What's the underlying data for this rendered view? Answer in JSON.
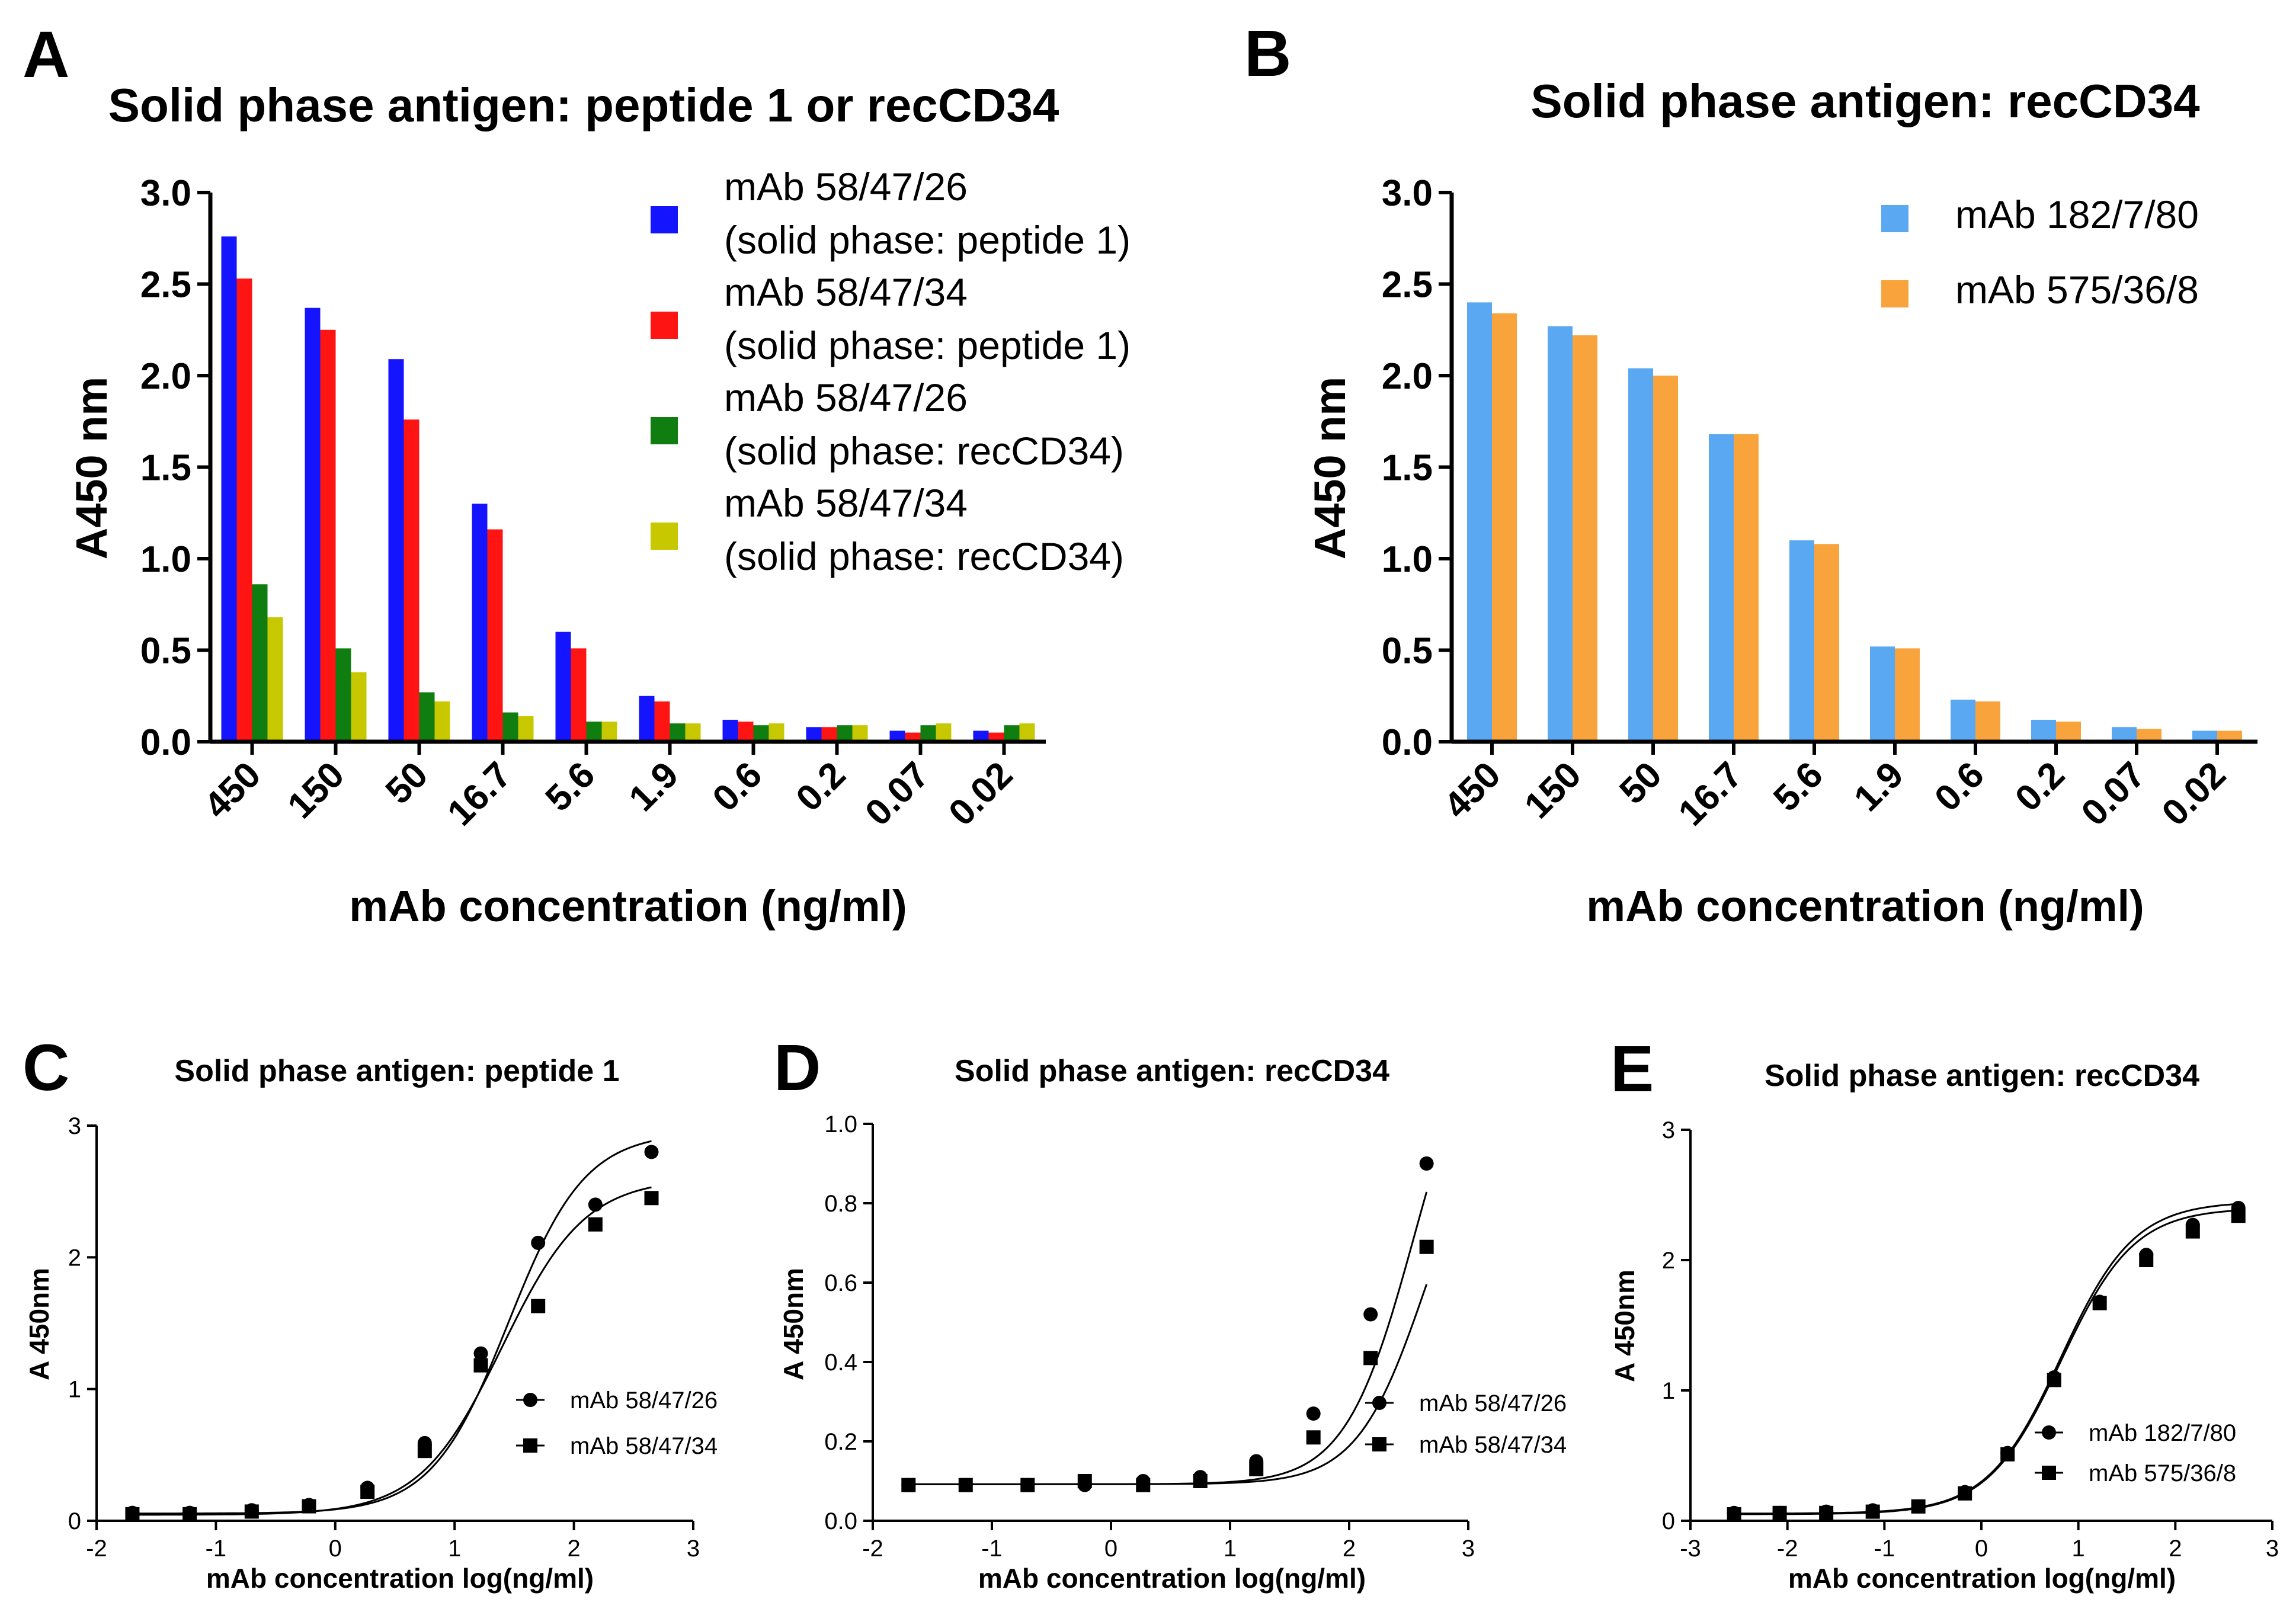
{
  "chart_data": [
    {
      "panel": "A",
      "type": "bar",
      "title": "Solid phase antigen: peptide 1 or recCD34",
      "xlabel": "mAb concentration (ng/ml)",
      "ylabel": "A450 nm",
      "ylim": [
        0,
        3.0
      ],
      "yticks": [
        "0.0",
        "0.5",
        "1.0",
        "1.5",
        "2.0",
        "2.5",
        "3.0"
      ],
      "categories": [
        "450",
        "150",
        "50",
        "16.7",
        "5.6",
        "1.9",
        "0.6",
        "0.2",
        "0.07",
        "0.02"
      ],
      "legend_position": "top-right",
      "series": [
        {
          "name_lines": [
            "mAb 58/47/26",
            "(solid phase: peptide 1)"
          ],
          "color": "#1414ff",
          "values": [
            2.76,
            2.37,
            2.09,
            1.3,
            0.6,
            0.25,
            0.12,
            0.08,
            0.06,
            0.06
          ]
        },
        {
          "name_lines": [
            "mAb 58/47/34",
            "(solid phase: peptide 1)"
          ],
          "color": "#ff1414",
          "values": [
            2.53,
            2.25,
            1.76,
            1.16,
            0.51,
            0.22,
            0.11,
            0.08,
            0.05,
            0.05
          ]
        },
        {
          "name_lines": [
            "mAb 58/47/26",
            "(solid phase: recCD34)"
          ],
          "color": "#0f7d0f",
          "values": [
            0.86,
            0.51,
            0.27,
            0.16,
            0.11,
            0.1,
            0.09,
            0.09,
            0.09,
            0.09
          ]
        },
        {
          "name_lines": [
            "mAb 58/47/34",
            "(solid phase: recCD34)"
          ],
          "color": "#c8c800",
          "values": [
            0.68,
            0.38,
            0.22,
            0.14,
            0.11,
            0.1,
            0.1,
            0.09,
            0.1,
            0.1
          ]
        }
      ]
    },
    {
      "panel": "B",
      "type": "bar",
      "title": "Solid phase antigen: recCD34",
      "xlabel": "mAb concentration (ng/ml)",
      "ylabel": "A450 nm",
      "ylim": [
        0,
        3.0
      ],
      "yticks": [
        "0.0",
        "0.5",
        "1.0",
        "1.5",
        "2.0",
        "2.5",
        "3.0"
      ],
      "categories": [
        "450",
        "150",
        "50",
        "16.7",
        "5.6",
        "1.9",
        "0.6",
        "0.2",
        "0.07",
        "0.02"
      ],
      "legend_position": "top-right",
      "series": [
        {
          "name_lines": [
            "mAb 182/7/80"
          ],
          "color": "#5aa8f2",
          "values": [
            2.4,
            2.27,
            2.04,
            1.68,
            1.1,
            0.52,
            0.23,
            0.12,
            0.08,
            0.06
          ]
        },
        {
          "name_lines": [
            "mAb 575/36/8"
          ],
          "color": "#f9a33c",
          "values": [
            2.34,
            2.22,
            2.0,
            1.68,
            1.08,
            0.51,
            0.22,
            0.11,
            0.07,
            0.06
          ]
        }
      ]
    },
    {
      "panel": "C",
      "type": "scatter",
      "title": "Solid phase antigen: peptide 1",
      "xlabel": "mAb concentration log(ng/ml)",
      "ylabel": "A 450nm",
      "xlim": [
        -2,
        3
      ],
      "ylim": [
        0,
        3
      ],
      "xticks": [
        "-2",
        "-1",
        "0",
        "1",
        "2",
        "3"
      ],
      "yticks": [
        "0",
        "1",
        "2",
        "3"
      ],
      "legend_position": "center-right",
      "series": [
        {
          "name": "mAb 58/47/26",
          "marker": "circle",
          "x": [
            -1.7,
            -1.22,
            -0.7,
            -0.22,
            0.27,
            0.75,
            1.22,
            1.7,
            2.18,
            2.65
          ],
          "y": [
            0.06,
            0.06,
            0.08,
            0.12,
            0.25,
            0.59,
            1.27,
            2.11,
            2.4,
            2.8
          ],
          "fit": {
            "bottom": 0.055,
            "top": 2.95,
            "logec50": 1.45,
            "hill": 1.35
          }
        },
        {
          "name": "mAb 58/47/34",
          "marker": "square",
          "x": [
            -1.7,
            -1.22,
            -0.7,
            -0.22,
            0.27,
            0.75,
            1.22,
            1.7,
            2.18,
            2.65
          ],
          "y": [
            0.05,
            0.05,
            0.07,
            0.11,
            0.22,
            0.53,
            1.18,
            1.63,
            2.25,
            2.45
          ],
          "fit": {
            "bottom": 0.045,
            "top": 2.6,
            "logec50": 1.4,
            "hill": 1.25
          }
        }
      ]
    },
    {
      "panel": "D",
      "type": "scatter",
      "title": "Solid phase antigen: recCD34",
      "xlabel": "mAb concentration log(ng/ml)",
      "ylabel": "A 450nm",
      "xlim": [
        -2,
        3
      ],
      "ylim": [
        0,
        1.0
      ],
      "xticks": [
        "-2",
        "-1",
        "0",
        "1",
        "2",
        "3"
      ],
      "yticks": [
        "0.0",
        "0.2",
        "0.4",
        "0.6",
        "0.8",
        "1.0"
      ],
      "legend_position": "center-right",
      "series": [
        {
          "name": "mAb 58/47/26",
          "marker": "circle",
          "x": [
            -1.7,
            -1.22,
            -0.7,
            -0.22,
            0.27,
            0.75,
            1.22,
            1.7,
            2.18,
            2.65
          ],
          "y": [
            0.09,
            0.09,
            0.09,
            0.09,
            0.1,
            0.11,
            0.15,
            0.27,
            0.52,
            0.9
          ],
          "fit": {
            "bottom": 0.092,
            "top": 1.35,
            "logec50": 2.55,
            "hill": 1.5
          }
        },
        {
          "name": "mAb 58/47/34",
          "marker": "square",
          "x": [
            -1.7,
            -1.22,
            -0.7,
            -0.22,
            0.27,
            0.75,
            1.22,
            1.7,
            2.18,
            2.65
          ],
          "y": [
            0.09,
            0.09,
            0.09,
            0.1,
            0.09,
            0.1,
            0.13,
            0.21,
            0.41,
            0.69
          ],
          "fit": {
            "bottom": 0.092,
            "top": 1.1,
            "logec50": 2.65,
            "hill": 1.5
          }
        }
      ]
    },
    {
      "panel": "E",
      "type": "scatter",
      "title": "Solid phase antigen: recCD34",
      "xlabel": "mAb concentration log(ng/ml)",
      "ylabel": "A 450nm",
      "xlim": [
        -3,
        3
      ],
      "ylim": [
        0,
        3
      ],
      "xticks": [
        "-3",
        "-2",
        "-1",
        "0",
        "1",
        "2",
        "3"
      ],
      "yticks": [
        "0",
        "1",
        "2",
        "3"
      ],
      "legend_position": "center-right",
      "series": [
        {
          "name": "mAb 182/7/80",
          "marker": "circle",
          "x": [
            -2.55,
            -2.08,
            -1.6,
            -1.12,
            -0.65,
            -0.17,
            0.27,
            0.75,
            1.22,
            1.7,
            2.18,
            2.65
          ],
          "y": [
            0.06,
            0.06,
            0.07,
            0.08,
            0.11,
            0.22,
            0.52,
            1.1,
            1.68,
            2.04,
            2.27,
            2.4
          ],
          "fit": {
            "bottom": 0.055,
            "top": 2.45,
            "logec50": 0.82,
            "hill": 1.15
          }
        },
        {
          "name": "mAb 575/36/8",
          "marker": "square",
          "x": [
            -2.55,
            -2.08,
            -1.6,
            -1.12,
            -0.65,
            -0.17,
            0.27,
            0.75,
            1.22,
            1.7,
            2.18,
            2.65
          ],
          "y": [
            0.05,
            0.06,
            0.06,
            0.07,
            0.11,
            0.21,
            0.51,
            1.08,
            1.67,
            2.0,
            2.22,
            2.34
          ],
          "fit": {
            "bottom": 0.05,
            "top": 2.4,
            "logec50": 0.82,
            "hill": 1.15
          }
        }
      ]
    }
  ]
}
